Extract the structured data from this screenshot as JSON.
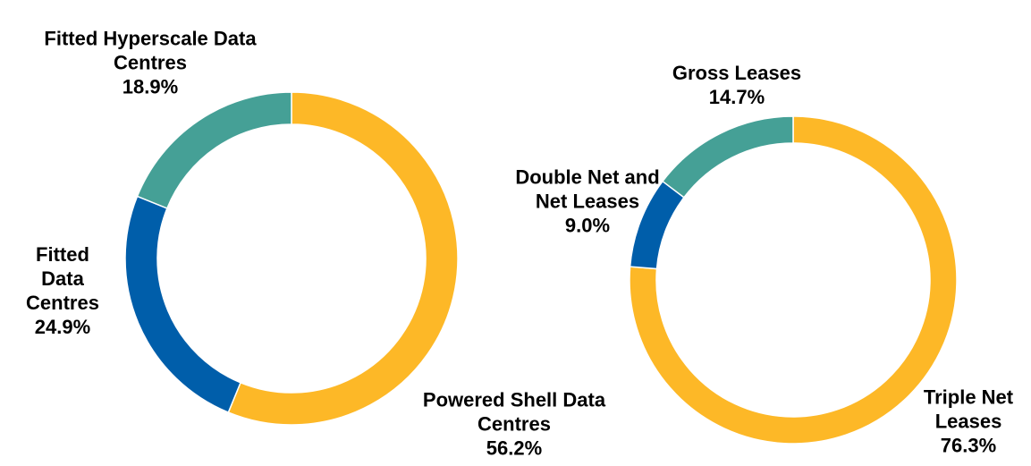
{
  "chart_data": [
    {
      "type": "pie",
      "donut": true,
      "categories": [
        "Powered Shell Data Centres",
        "Fitted Data Centres",
        "Fitted Hyperscale Data Centres"
      ],
      "values": [
        56.2,
        24.9,
        18.9
      ],
      "value_labels": [
        "56.2%",
        "24.9%",
        "18.9%"
      ],
      "colors": [
        "#FDB827",
        "#005EAA",
        "#45A096"
      ]
    },
    {
      "type": "pie",
      "donut": true,
      "categories": [
        "Triple Net Leases",
        "Double Net and Net Leases",
        "Gross Leases"
      ],
      "values": [
        76.3,
        9.0,
        14.7
      ],
      "value_labels": [
        "76.3%",
        "9.0%",
        "14.7%"
      ],
      "colors": [
        "#FDB827",
        "#005EAA",
        "#45A096"
      ]
    }
  ]
}
